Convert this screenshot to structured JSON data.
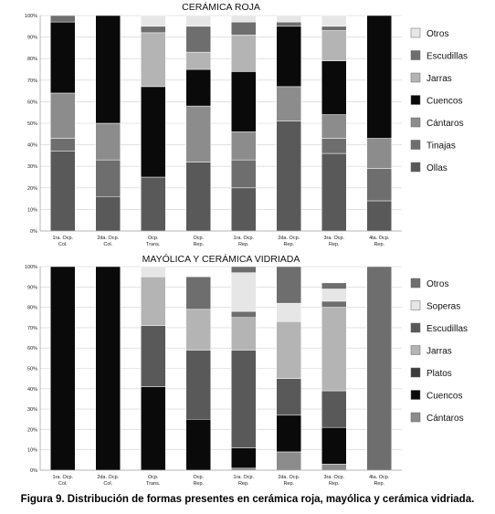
{
  "chart_data": [
    {
      "type": "bar",
      "stacked": true,
      "title": "CERÁMICA ROJA",
      "ylim": [
        0,
        100
      ],
      "yticks": [
        "0%",
        "10%",
        "20%",
        "30%",
        "40%",
        "50%",
        "60%",
        "70%",
        "80%",
        "90%",
        "100%"
      ],
      "grid": true,
      "legend_position": "right",
      "categories": [
        [
          "1ra. Ocp.",
          "Col."
        ],
        [
          "2da. Ocp.",
          "Col."
        ],
        [
          "Ocp.",
          "Trans."
        ],
        [
          "Ocp.",
          "Rep."
        ],
        [
          "1ra. Ocp.",
          "Rep."
        ],
        [
          "2da. Ocp.",
          "Rep."
        ],
        [
          "3ra. Ocp.",
          "Rep."
        ],
        [
          "4ta. Ocp.",
          "Rep."
        ]
      ],
      "series": [
        {
          "name": "Ollas",
          "color": "#595959",
          "values": [
            37,
            16,
            25,
            32,
            20,
            51,
            36,
            14
          ]
        },
        {
          "name": "Tinajas",
          "color": "#6e6e6e",
          "values": [
            6,
            17,
            0,
            0,
            13,
            0,
            7,
            15
          ]
        },
        {
          "name": "Cántaros",
          "color": "#8c8c8c",
          "values": [
            21,
            17,
            0,
            26,
            13,
            16,
            11,
            14
          ]
        },
        {
          "name": "Cuencos",
          "color": "#0a0a0a",
          "values": [
            33,
            50,
            42,
            17,
            28,
            28,
            25,
            57
          ]
        },
        {
          "name": "Jarras",
          "color": "#b4b4b4",
          "values": [
            0,
            0,
            25,
            8,
            17,
            0,
            14,
            0
          ]
        },
        {
          "name": "Escudillas",
          "color": "#6e6e6e",
          "values": [
            3,
            0,
            3,
            12,
            6,
            2,
            2,
            0
          ]
        },
        {
          "name": "Otros",
          "color": "#e6e6e6",
          "values": [
            0,
            0,
            5,
            5,
            3,
            3,
            5,
            0
          ]
        }
      ]
    },
    {
      "type": "bar",
      "stacked": true,
      "title": "MAYÓLICA Y CERÁMICA VIDRIADA",
      "ylim": [
        0,
        100
      ],
      "yticks": [
        "0%",
        "10%",
        "20%",
        "30%",
        "40%",
        "50%",
        "60%",
        "70%",
        "80%",
        "90%",
        "100%"
      ],
      "grid": true,
      "legend_position": "right",
      "categories": [
        [
          "1ra. Ocp.",
          "Col."
        ],
        [
          "2da. Ocp.",
          "Col."
        ],
        [
          "Ocp.",
          "Trans."
        ],
        [
          "Ocp.",
          "Rep."
        ],
        [
          "1ra. Ocp.",
          "Rep."
        ],
        [
          "2da. Ocp.",
          "Rep."
        ],
        [
          "3ra. Ocp.",
          "Rep."
        ],
        [
          "4ta. Ocp.",
          "Rep."
        ]
      ],
      "series": [
        {
          "name": "Cántaros",
          "color": "#8c8c8c",
          "values": [
            0,
            0,
            0,
            0,
            1,
            9,
            3,
            0
          ]
        },
        {
          "name": "Cuencos",
          "color": "#0a0a0a",
          "values": [
            100,
            100,
            41,
            25,
            10,
            18,
            18,
            0
          ]
        },
        {
          "name": "Platos",
          "color": "#3c3c3c",
          "values": [
            0,
            0,
            0,
            0,
            0,
            0,
            0,
            0
          ]
        },
        {
          "name": "Jarras",
          "color": "#b4b4b4",
          "values": [
            0,
            0,
            0,
            0,
            0,
            0,
            0,
            0
          ]
        },
        {
          "name": "Escudillas",
          "color": "#595959",
          "values": [
            0,
            0,
            30,
            34,
            48,
            18,
            18,
            0
          ]
        },
        {
          "name": "Jarras",
          "color": "#b4b4b4",
          "values": [
            0,
            0,
            24,
            20,
            16,
            28,
            41,
            0
          ]
        },
        {
          "name": "Escudillas",
          "color": "#6e6e6e",
          "values": [
            0,
            0,
            0,
            0,
            3,
            0,
            3,
            0
          ]
        },
        {
          "name": "Soperas",
          "color": "#e6e6e6",
          "values": [
            0,
            0,
            5,
            0,
            19,
            9,
            6,
            0
          ]
        },
        {
          "name": "Otros",
          "color": "#6e6e6e",
          "values": [
            0,
            0,
            0,
            16,
            3,
            18,
            3,
            100
          ]
        }
      ],
      "legend": [
        "Otros",
        "Soperas",
        "Escudillas",
        "Jarras",
        "Platos",
        "Cuencos",
        "Cántaros"
      ]
    }
  ],
  "legend_roja": [
    {
      "label": "Otros",
      "color": "#e6e6e6"
    },
    {
      "label": "Escudillas",
      "color": "#6e6e6e"
    },
    {
      "label": "Jarras",
      "color": "#b4b4b4"
    },
    {
      "label": "Cuencos",
      "color": "#0a0a0a"
    },
    {
      "label": "Cántaros",
      "color": "#8c8c8c"
    },
    {
      "label": "Tinajas",
      "color": "#6e6e6e"
    },
    {
      "label": "Ollas",
      "color": "#595959"
    }
  ],
  "legend_vidriada": [
    {
      "label": "Otros",
      "color": "#6e6e6e"
    },
    {
      "label": "Soperas",
      "color": "#e6e6e6"
    },
    {
      "label": "Escudillas",
      "color": "#595959"
    },
    {
      "label": "Jarras",
      "color": "#b4b4b4"
    },
    {
      "label": "Platos",
      "color": "#3c3c3c"
    },
    {
      "label": "Cuencos",
      "color": "#0a0a0a"
    },
    {
      "label": "Cántaros",
      "color": "#8c8c8c"
    }
  ],
  "caption": "Figura 9. Distribución de formas presentes en cerámica roja, mayólica y cerámica vidriada."
}
